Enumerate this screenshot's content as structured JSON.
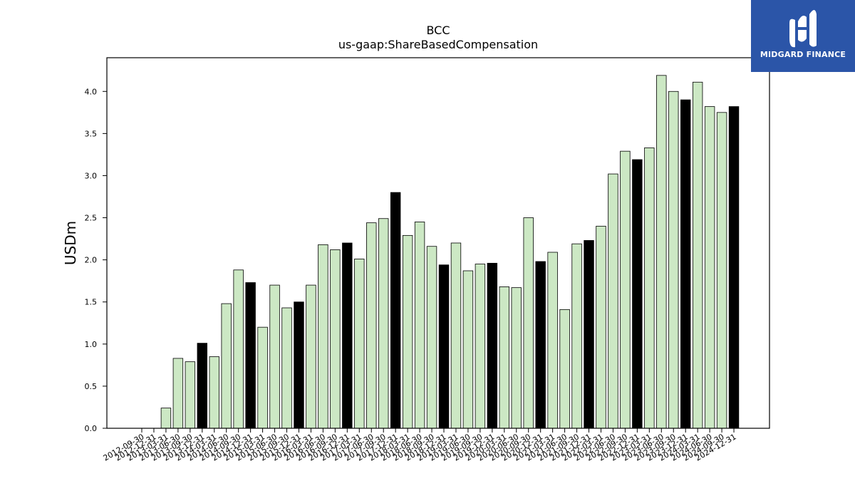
{
  "chart_data": {
    "type": "bar",
    "title": "BCC",
    "subtitle": "us-gaap:ShareBasedCompensation",
    "xlabel": "",
    "ylabel": "USDm",
    "ylim": [
      0,
      4.4
    ],
    "yticks": [
      0.0,
      0.5,
      1.0,
      1.5,
      2.0,
      2.5,
      3.0,
      3.5,
      4.0
    ],
    "ytick_labels": [
      "0.0",
      "0.5",
      "1.0",
      "1.5",
      "2.0",
      "2.5",
      "3.0",
      "3.5",
      "4.0"
    ],
    "grid": false,
    "colors": {
      "quarter": "#cce8c4",
      "year_end": "#000000",
      "edge": "#000000"
    },
    "categories": [
      "2012-09-30",
      "2012-12-31",
      "2013-03-31",
      "2013-06-30",
      "2013-09-30",
      "2013-12-31",
      "2014-03-31",
      "2014-06-30",
      "2014-09-30",
      "2014-12-31",
      "2015-03-31",
      "2015-06-30",
      "2015-09-30",
      "2015-12-31",
      "2016-03-31",
      "2016-06-30",
      "2016-09-30",
      "2016-12-31",
      "2017-03-31",
      "2017-06-30",
      "2017-09-30",
      "2017-12-31",
      "2018-03-31",
      "2018-06-30",
      "2018-09-30",
      "2018-12-31",
      "2019-03-31",
      "2019-06-30",
      "2019-09-30",
      "2019-12-31",
      "2020-03-31",
      "2020-06-30",
      "2020-09-30",
      "2020-12-31",
      "2021-03-31",
      "2021-06-30",
      "2021-09-30",
      "2021-12-31",
      "2022-03-31",
      "2022-06-30",
      "2022-09-30",
      "2022-12-31",
      "2023-03-31",
      "2023-06-30",
      "2023-09-30",
      "2023-12-31",
      "2024-03-31",
      "2024-06-30",
      "2024-09-30",
      "2024-12-31"
    ],
    "values": [
      null,
      null,
      0.24,
      0.83,
      0.79,
      1.01,
      0.85,
      1.48,
      1.88,
      1.73,
      1.2,
      1.7,
      1.43,
      1.5,
      1.7,
      2.18,
      2.12,
      2.2,
      2.01,
      2.44,
      2.49,
      2.8,
      2.29,
      2.45,
      2.16,
      1.94,
      2.2,
      1.87,
      1.95,
      1.96,
      1.68,
      1.67,
      2.5,
      1.98,
      2.09,
      1.41,
      2.19,
      2.23,
      2.4,
      3.02,
      3.29,
      3.19,
      3.33,
      4.19,
      4.0,
      3.9,
      4.11,
      3.82,
      3.75,
      3.82
    ],
    "year_end": [
      false,
      true,
      false,
      false,
      false,
      true,
      false,
      false,
      false,
      true,
      false,
      false,
      false,
      true,
      false,
      false,
      false,
      true,
      false,
      false,
      false,
      true,
      false,
      false,
      false,
      true,
      false,
      false,
      false,
      true,
      false,
      false,
      false,
      true,
      false,
      false,
      false,
      true,
      false,
      false,
      false,
      true,
      false,
      false,
      false,
      true,
      false,
      false,
      false,
      true
    ]
  },
  "logo": {
    "text": "MIDGARD FINANCE",
    "background": "#2b55a8"
  }
}
